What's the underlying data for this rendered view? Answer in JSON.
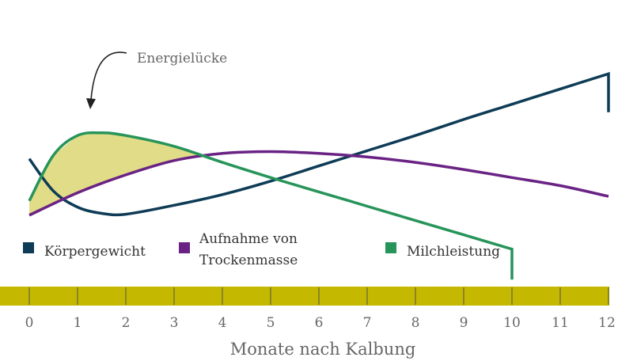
{
  "chart_data": {
    "type": "line",
    "xlabel": "Monate nach Kalbung",
    "ylabel": "",
    "x_ticks": [
      0,
      1,
      2,
      3,
      4,
      5,
      6,
      7,
      8,
      9,
      10,
      11,
      12
    ],
    "xlim": [
      0,
      12
    ],
    "ylim": [
      0,
      10
    ],
    "grid": false,
    "legend_placement": "bottom",
    "axis_bar_color": "#c4b800",
    "series": [
      {
        "name": "Körpergewicht",
        "color": "#0e3b55",
        "x": [
          0,
          0.5,
          1,
          1.5,
          2,
          3,
          4,
          5,
          6,
          7,
          8,
          9,
          10,
          11,
          12,
          12
        ],
        "y": [
          6.7,
          4.9,
          4.0,
          3.65,
          3.6,
          4.1,
          4.7,
          5.45,
          6.3,
          7.15,
          8.0,
          8.9,
          9.75,
          10.6,
          11.45,
          9.3
        ]
      },
      {
        "name": "Aufnahme von Trockenmasse",
        "color": "#6a2384",
        "x": [
          0,
          1,
          2,
          3,
          4,
          5,
          6,
          7,
          8,
          9,
          10,
          11,
          12
        ],
        "y": [
          3.55,
          4.8,
          5.8,
          6.6,
          7.0,
          7.1,
          7.0,
          6.8,
          6.5,
          6.1,
          5.65,
          5.2,
          4.6
        ]
      },
      {
        "name": "Milchleistung",
        "color": "#27945a",
        "x": [
          0,
          0.5,
          1,
          1.5,
          2,
          3,
          4,
          5,
          6,
          7,
          8,
          9,
          10,
          10
        ],
        "y": [
          4.35,
          6.9,
          8.0,
          8.15,
          8.0,
          7.4,
          6.5,
          5.65,
          4.85,
          4.05,
          3.25,
          2.45,
          1.65,
          -0.05
        ]
      }
    ],
    "annotations": [
      {
        "text": "Energielücke",
        "fill_color": "#e1dc87"
      }
    ]
  }
}
